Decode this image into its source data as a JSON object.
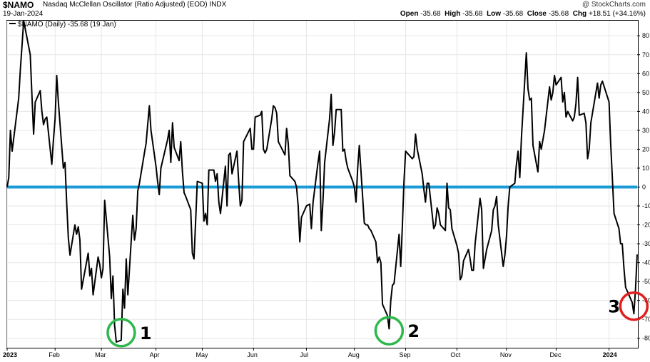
{
  "header": {
    "symbol": "$NAMO",
    "description": "Nasdaq McClellan Oscillator (Ratio Adjusted) (EOD)",
    "exchange": "INDX",
    "date": "19-Jan-2024",
    "watermark": "@ StockCharts.com",
    "open_label": "Open",
    "open": "-35.68",
    "high_label": "High",
    "high": "-35.68",
    "low_label": "Low",
    "low": "-35.68",
    "close_label": "Close",
    "close": "-35.68",
    "chg_label": "Chg",
    "chg": "+18.51 (+34.16%)"
  },
  "legend": {
    "text": "$NAMO (Daily) -35.68 (19 Jan)"
  },
  "chart_data": {
    "type": "line",
    "ylim": [
      -85,
      88
    ],
    "yticks": [
      80,
      70,
      60,
      50,
      40,
      30,
      20,
      10,
      0,
      -10,
      -20,
      -30,
      -40,
      -50,
      -60,
      -70,
      -80
    ],
    "x_tick_labels": [
      "2023",
      "Feb",
      "Mar",
      "Apr",
      "May",
      "Jun",
      "Jul",
      "Aug",
      "Sep",
      "Oct",
      "Nov",
      "Dec",
      "2024"
    ],
    "x_tick_dates": [
      "2023-01-03",
      "2023-02-01",
      "2023-03-01",
      "2023-04-03",
      "2023-05-01",
      "2023-06-01",
      "2023-07-03",
      "2023-08-01",
      "2023-09-01",
      "2023-10-02",
      "2023-11-01",
      "2023-12-01",
      "2024-01-02"
    ],
    "x_start": "2023-01-03",
    "x_end": "2024-01-19",
    "zero_line_color": "#1a9bd7",
    "series": [
      {
        "color": "#000000",
        "points": [
          [
            "2023-01-03",
            0
          ],
          [
            "2023-01-04",
            5
          ],
          [
            "2023-01-05",
            30
          ],
          [
            "2023-01-06",
            19
          ],
          [
            "2023-01-09",
            40
          ],
          [
            "2023-01-10",
            47
          ],
          [
            "2023-01-11",
            62
          ],
          [
            "2023-01-12",
            75
          ],
          [
            "2023-01-13",
            88
          ],
          [
            "2023-01-17",
            70
          ],
          [
            "2023-01-18",
            48
          ],
          [
            "2023-01-19",
            28
          ],
          [
            "2023-01-20",
            45
          ],
          [
            "2023-01-23",
            51
          ],
          [
            "2023-01-24",
            40
          ],
          [
            "2023-01-25",
            33
          ],
          [
            "2023-01-26",
            36
          ],
          [
            "2023-01-27",
            37
          ],
          [
            "2023-01-30",
            12
          ],
          [
            "2023-01-31",
            25
          ],
          [
            "2023-02-01",
            36
          ],
          [
            "2023-02-02",
            59
          ],
          [
            "2023-02-03",
            45
          ],
          [
            "2023-02-06",
            10
          ],
          [
            "2023-02-07",
            13
          ],
          [
            "2023-02-08",
            -8
          ],
          [
            "2023-02-09",
            -27
          ],
          [
            "2023-02-10",
            -36
          ],
          [
            "2023-02-13",
            -20
          ],
          [
            "2023-02-14",
            -25
          ],
          [
            "2023-02-15",
            -21
          ],
          [
            "2023-02-16",
            -28
          ],
          [
            "2023-02-17",
            -54
          ],
          [
            "2023-02-21",
            -35
          ],
          [
            "2023-02-22",
            -47
          ],
          [
            "2023-02-23",
            -43
          ],
          [
            "2023-02-24",
            -57
          ],
          [
            "2023-02-27",
            -37
          ],
          [
            "2023-02-28",
            -41
          ],
          [
            "2023-03-01",
            -48
          ],
          [
            "2023-03-02",
            -43
          ],
          [
            "2023-03-03",
            -7
          ],
          [
            "2023-03-06",
            -37
          ],
          [
            "2023-03-07",
            -59
          ],
          [
            "2023-03-08",
            -47
          ],
          [
            "2023-03-09",
            -73
          ],
          [
            "2023-03-10",
            -82
          ],
          [
            "2023-03-13",
            -81
          ],
          [
            "2023-03-14",
            -54
          ],
          [
            "2023-03-15",
            -64
          ],
          [
            "2023-03-16",
            -38
          ],
          [
            "2023-03-17",
            -57
          ],
          [
            "2023-03-20",
            -15
          ],
          [
            "2023-03-21",
            -28
          ],
          [
            "2023-03-22",
            -22
          ],
          [
            "2023-03-23",
            -2
          ],
          [
            "2023-03-24",
            2
          ],
          [
            "2023-03-27",
            18
          ],
          [
            "2023-03-28",
            23
          ],
          [
            "2023-03-29",
            33
          ],
          [
            "2023-03-30",
            43
          ],
          [
            "2023-03-31",
            30
          ],
          [
            "2023-04-03",
            11
          ],
          [
            "2023-04-04",
            3
          ],
          [
            "2023-04-05",
            -4
          ],
          [
            "2023-04-06",
            10
          ],
          [
            "2023-04-10",
            25
          ],
          [
            "2023-04-11",
            30
          ],
          [
            "2023-04-12",
            13
          ],
          [
            "2023-04-13",
            34
          ],
          [
            "2023-04-14",
            21
          ],
          [
            "2023-04-17",
            14
          ],
          [
            "2023-04-18",
            24
          ],
          [
            "2023-04-19",
            8
          ],
          [
            "2023-04-20",
            -3
          ],
          [
            "2023-04-21",
            -5
          ],
          [
            "2023-04-24",
            -12
          ],
          [
            "2023-04-25",
            -35
          ],
          [
            "2023-04-26",
            -38
          ],
          [
            "2023-04-27",
            -18
          ],
          [
            "2023-04-28",
            3
          ],
          [
            "2023-05-01",
            2
          ],
          [
            "2023-05-02",
            -18
          ],
          [
            "2023-05-03",
            -14
          ],
          [
            "2023-05-04",
            -20
          ],
          [
            "2023-05-05",
            9
          ],
          [
            "2023-05-08",
            9
          ],
          [
            "2023-05-09",
            3
          ],
          [
            "2023-05-10",
            7
          ],
          [
            "2023-05-11",
            -8
          ],
          [
            "2023-05-12",
            -14
          ],
          [
            "2023-05-15",
            11
          ],
          [
            "2023-05-16",
            -10
          ],
          [
            "2023-05-17",
            17
          ],
          [
            "2023-05-18",
            18
          ],
          [
            "2023-05-19",
            7
          ],
          [
            "2023-05-22",
            19
          ],
          [
            "2023-05-23",
            3
          ],
          [
            "2023-05-24",
            -10
          ],
          [
            "2023-05-25",
            -7
          ],
          [
            "2023-05-26",
            24
          ],
          [
            "2023-05-30",
            31
          ],
          [
            "2023-05-31",
            20
          ],
          [
            "2023-06-01",
            20
          ],
          [
            "2023-06-02",
            37
          ],
          [
            "2023-06-05",
            38
          ],
          [
            "2023-06-06",
            40
          ],
          [
            "2023-06-07",
            20
          ],
          [
            "2023-06-08",
            18
          ],
          [
            "2023-06-09",
            20
          ],
          [
            "2023-06-12",
            36
          ],
          [
            "2023-06-13",
            43
          ],
          [
            "2023-06-14",
            42
          ],
          [
            "2023-06-15",
            39
          ],
          [
            "2023-06-16",
            24
          ],
          [
            "2023-06-20",
            17
          ],
          [
            "2023-06-21",
            31
          ],
          [
            "2023-06-22",
            23
          ],
          [
            "2023-06-23",
            6
          ],
          [
            "2023-06-26",
            3
          ],
          [
            "2023-06-27",
            0
          ],
          [
            "2023-06-28",
            -10
          ],
          [
            "2023-06-29",
            -29
          ],
          [
            "2023-06-30",
            -16
          ],
          [
            "2023-07-03",
            -10
          ],
          [
            "2023-07-05",
            -9
          ],
          [
            "2023-07-06",
            -22
          ],
          [
            "2023-07-07",
            -8
          ],
          [
            "2023-07-10",
            13
          ],
          [
            "2023-07-11",
            19
          ],
          [
            "2023-07-12",
            -23
          ],
          [
            "2023-07-13",
            -7
          ],
          [
            "2023-07-14",
            13
          ],
          [
            "2023-07-17",
            36
          ],
          [
            "2023-07-18",
            49
          ],
          [
            "2023-07-19",
            22
          ],
          [
            "2023-07-20",
            29
          ],
          [
            "2023-07-21",
            41
          ],
          [
            "2023-07-24",
            41
          ],
          [
            "2023-07-25",
            19
          ],
          [
            "2023-07-26",
            20
          ],
          [
            "2023-07-27",
            14
          ],
          [
            "2023-07-28",
            10
          ],
          [
            "2023-07-31",
            3
          ],
          [
            "2023-08-01",
            0
          ],
          [
            "2023-08-02",
            -8
          ],
          [
            "2023-08-03",
            10
          ],
          [
            "2023-08-04",
            22
          ],
          [
            "2023-08-07",
            -19
          ],
          [
            "2023-08-08",
            -20
          ],
          [
            "2023-08-09",
            -20
          ],
          [
            "2023-08-10",
            -22
          ],
          [
            "2023-08-11",
            -23
          ],
          [
            "2023-08-14",
            -29
          ],
          [
            "2023-08-15",
            -40
          ],
          [
            "2023-08-16",
            -37
          ],
          [
            "2023-08-17",
            -40
          ],
          [
            "2023-08-18",
            -62
          ],
          [
            "2023-08-21",
            -68
          ],
          [
            "2023-08-22",
            -75
          ],
          [
            "2023-08-23",
            -60
          ],
          [
            "2023-08-24",
            -52
          ],
          [
            "2023-08-25",
            -51
          ],
          [
            "2023-08-28",
            -25
          ],
          [
            "2023-08-29",
            -42
          ],
          [
            "2023-08-30",
            -21
          ],
          [
            "2023-08-31",
            3
          ],
          [
            "2023-09-01",
            19
          ],
          [
            "2023-09-05",
            15
          ],
          [
            "2023-09-06",
            16
          ],
          [
            "2023-09-07",
            28
          ],
          [
            "2023-09-08",
            20
          ],
          [
            "2023-09-11",
            7
          ],
          [
            "2023-09-12",
            -1
          ],
          [
            "2023-09-13",
            -8
          ],
          [
            "2023-09-14",
            2
          ],
          [
            "2023-09-15",
            2
          ],
          [
            "2023-09-18",
            -22
          ],
          [
            "2023-09-19",
            -20
          ],
          [
            "2023-09-20",
            -11
          ],
          [
            "2023-09-21",
            -14
          ],
          [
            "2023-09-22",
            -20
          ],
          [
            "2023-09-25",
            -23
          ],
          [
            "2023-09-26",
            2
          ],
          [
            "2023-09-27",
            -11
          ],
          [
            "2023-09-28",
            -12
          ],
          [
            "2023-09-29",
            -22
          ],
          [
            "2023-10-02",
            -31
          ],
          [
            "2023-10-03",
            -35
          ],
          [
            "2023-10-04",
            -49
          ],
          [
            "2023-10-05",
            -47
          ],
          [
            "2023-10-06",
            -39
          ],
          [
            "2023-10-09",
            -33
          ],
          [
            "2023-10-10",
            -38
          ],
          [
            "2023-10-11",
            -44
          ],
          [
            "2023-10-12",
            -44
          ],
          [
            "2023-10-13",
            -30
          ],
          [
            "2023-10-16",
            -6
          ],
          [
            "2023-10-17",
            -12
          ],
          [
            "2023-10-18",
            -43
          ],
          [
            "2023-10-19",
            -38
          ],
          [
            "2023-10-20",
            -33
          ],
          [
            "2023-10-23",
            -23
          ],
          [
            "2023-10-24",
            -12
          ],
          [
            "2023-10-25",
            -10
          ],
          [
            "2023-10-26",
            -5
          ],
          [
            "2023-10-27",
            -20
          ],
          [
            "2023-10-30",
            -42
          ],
          [
            "2023-10-31",
            -36
          ],
          [
            "2023-11-01",
            -26
          ],
          [
            "2023-11-02",
            -10
          ],
          [
            "2023-11-03",
            0
          ],
          [
            "2023-11-06",
            2
          ],
          [
            "2023-11-07",
            12
          ],
          [
            "2023-11-08",
            19
          ],
          [
            "2023-11-09",
            5
          ],
          [
            "2023-11-10",
            26
          ],
          [
            "2023-11-13",
            71
          ],
          [
            "2023-11-14",
            52
          ],
          [
            "2023-11-15",
            46
          ],
          [
            "2023-11-16",
            47
          ],
          [
            "2023-11-17",
            22
          ],
          [
            "2023-11-20",
            8
          ],
          [
            "2023-11-21",
            24
          ],
          [
            "2023-11-22",
            20
          ],
          [
            "2023-11-24",
            30
          ],
          [
            "2023-11-27",
            53
          ],
          [
            "2023-11-28",
            46
          ],
          [
            "2023-11-29",
            50
          ],
          [
            "2023-11-30",
            59
          ],
          [
            "2023-12-01",
            54
          ],
          [
            "2023-12-04",
            58
          ],
          [
            "2023-12-05",
            45
          ],
          [
            "2023-12-06",
            50
          ],
          [
            "2023-12-07",
            37
          ],
          [
            "2023-12-08",
            40
          ],
          [
            "2023-12-11",
            35
          ],
          [
            "2023-12-12",
            37
          ],
          [
            "2023-12-13",
            44
          ],
          [
            "2023-12-14",
            58
          ],
          [
            "2023-12-15",
            38
          ],
          [
            "2023-12-18",
            39
          ],
          [
            "2023-12-19",
            34
          ],
          [
            "2023-12-20",
            15
          ],
          [
            "2023-12-21",
            20
          ],
          [
            "2023-12-22",
            34
          ],
          [
            "2023-12-26",
            55
          ],
          [
            "2023-12-27",
            47
          ],
          [
            "2023-12-28",
            54
          ],
          [
            "2023-12-29",
            56
          ],
          [
            "2024-01-02",
            45
          ],
          [
            "2024-01-03",
            23
          ],
          [
            "2024-01-04",
            5
          ],
          [
            "2024-01-05",
            -14
          ],
          [
            "2024-01-08",
            -22
          ],
          [
            "2024-01-09",
            -30
          ],
          [
            "2024-01-10",
            -30
          ],
          [
            "2024-01-11",
            -43
          ],
          [
            "2024-01-12",
            -53
          ],
          [
            "2024-01-16",
            -61
          ],
          [
            "2024-01-17",
            -67
          ],
          [
            "2024-01-18",
            -54
          ],
          [
            "2024-01-19",
            -35.68
          ]
        ]
      }
    ],
    "annotations": [
      {
        "label": "1",
        "date": "2023-03-13",
        "value": -77,
        "color": "#2db84b"
      },
      {
        "label": "2",
        "date": "2023-08-22",
        "value": -76,
        "color": "#2db84b"
      },
      {
        "label": "3",
        "date": "2024-01-17",
        "value": -63,
        "color": "#e02020"
      }
    ]
  }
}
